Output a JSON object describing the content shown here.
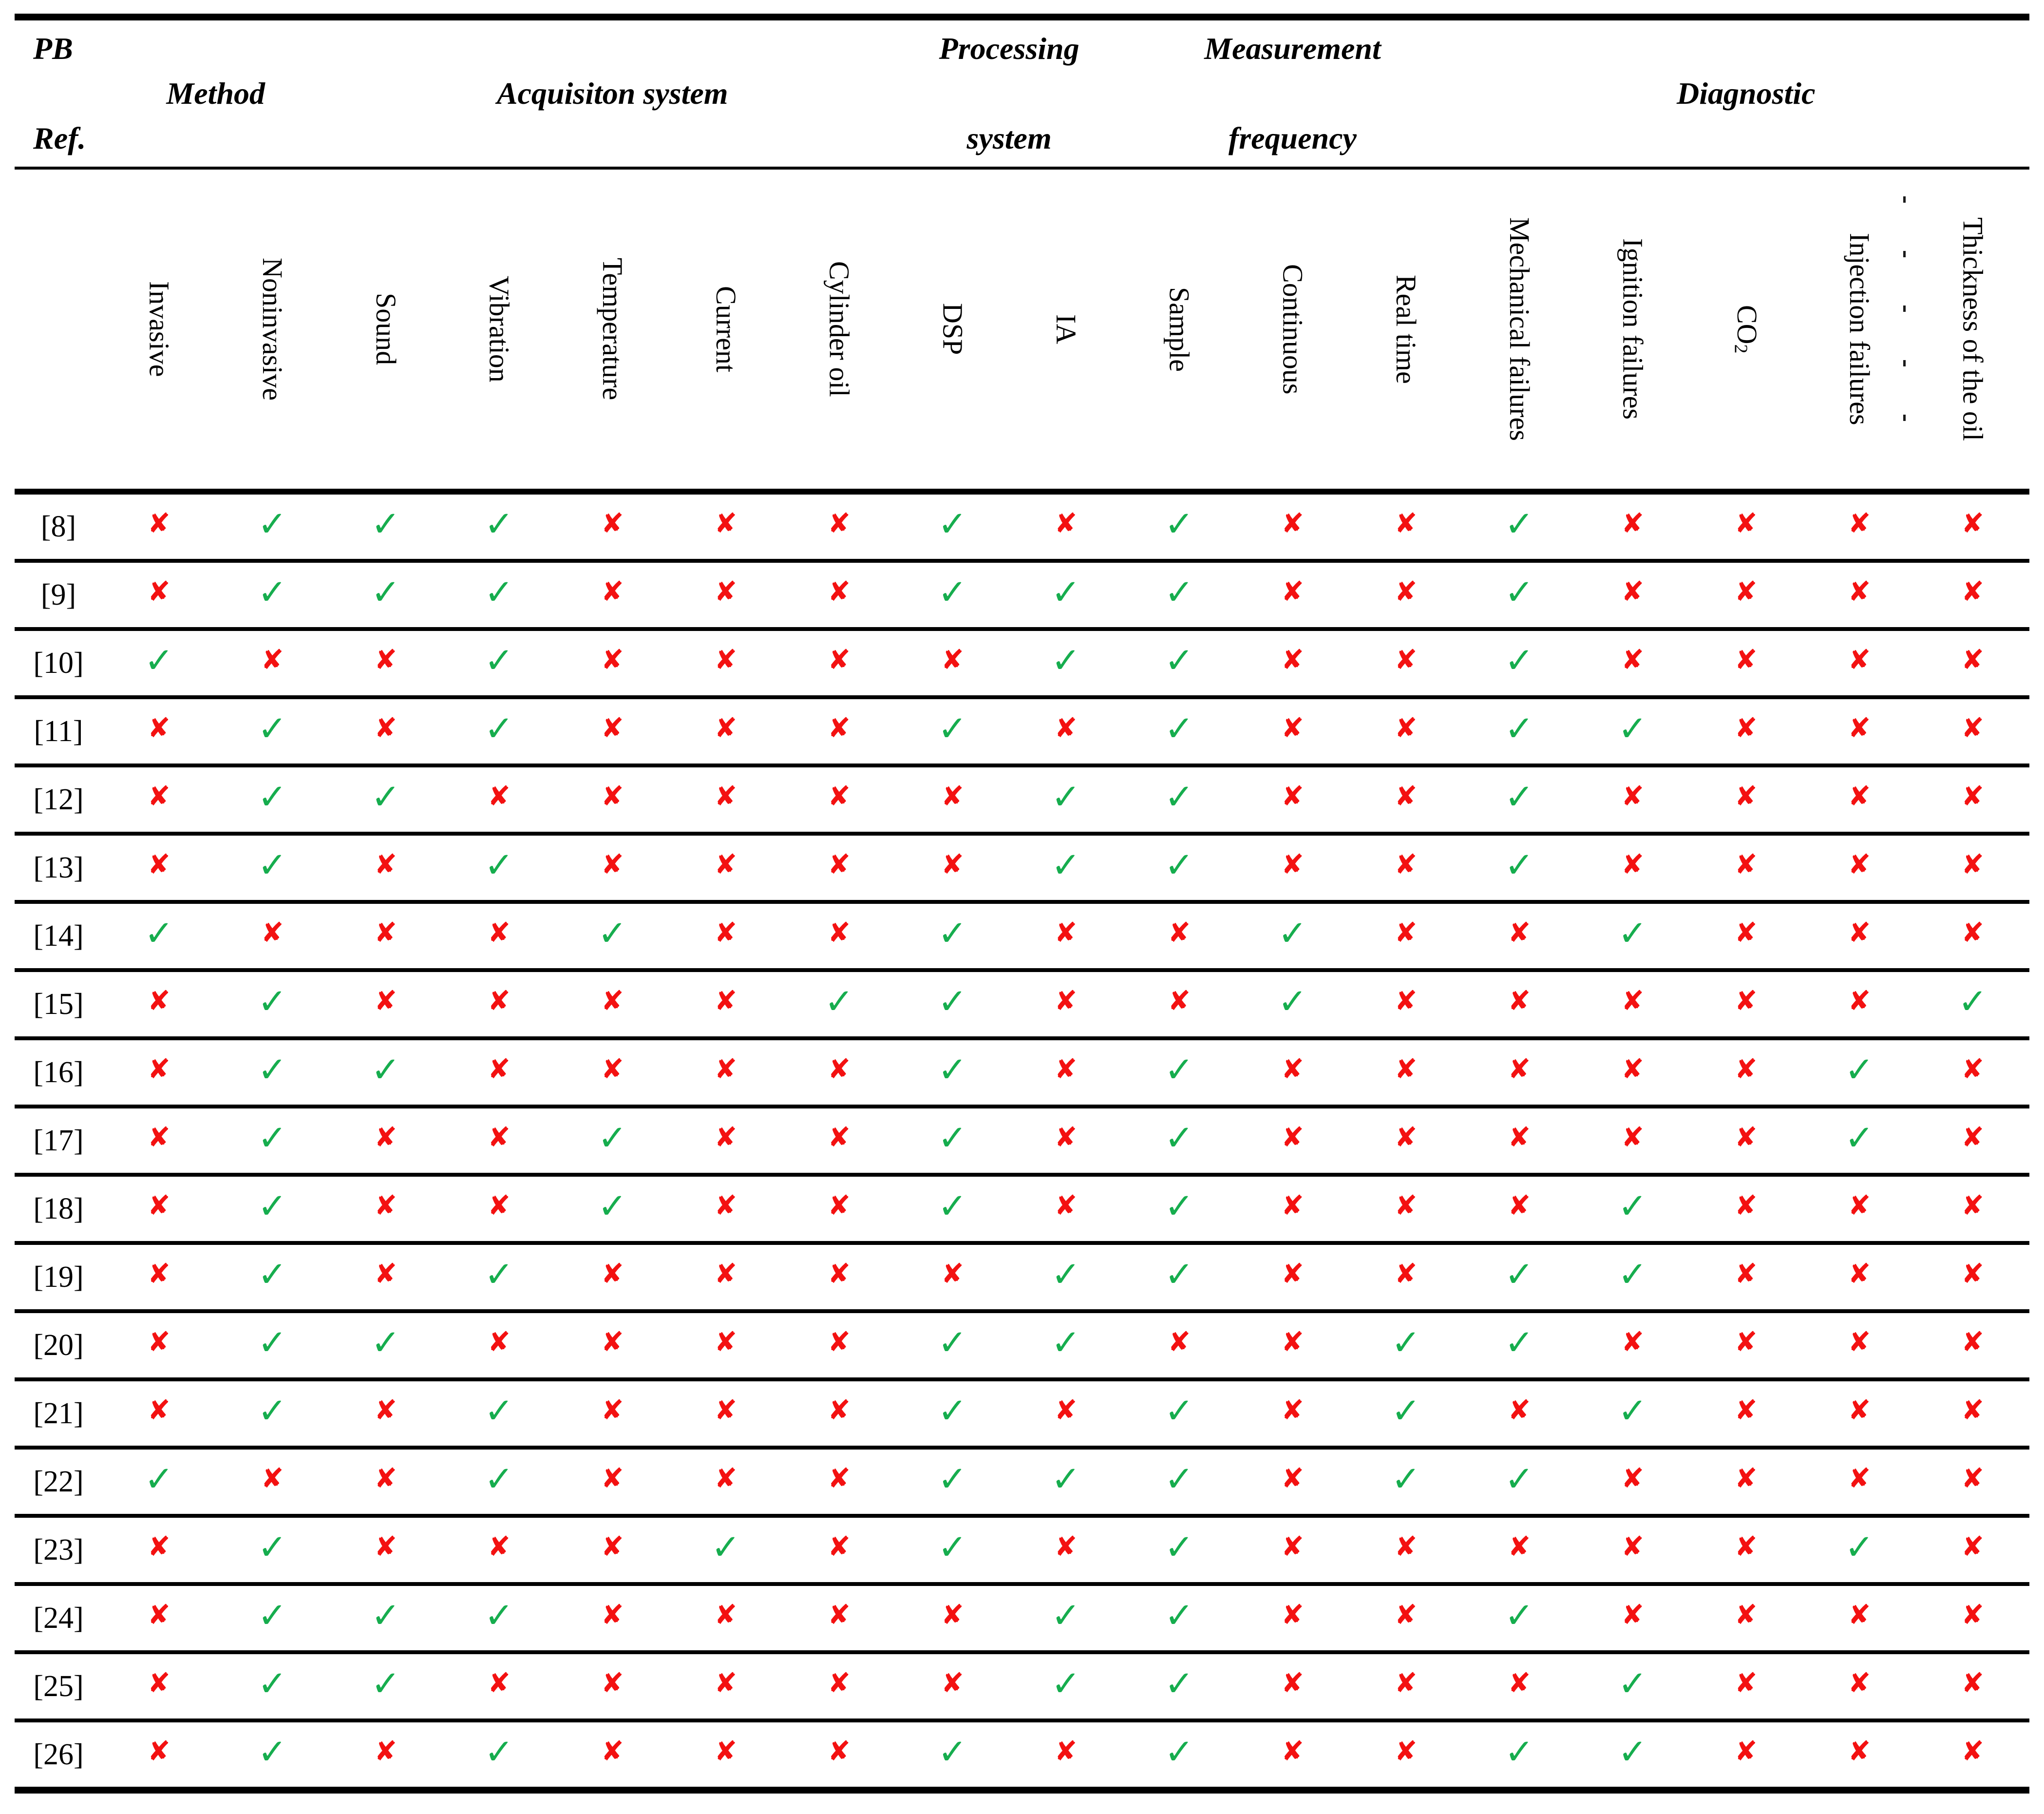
{
  "table": {
    "corner": {
      "line1": "PB",
      "line2": "Ref."
    },
    "groups": [
      {
        "lines": [
          "Method"
        ],
        "span": 2
      },
      {
        "lines": [
          "Acquisiton system"
        ],
        "span": 5
      },
      {
        "lines": [
          "Processing",
          "system"
        ],
        "span": 2
      },
      {
        "lines": [
          "Measurement",
          "frequency"
        ],
        "span": 3
      },
      {
        "lines": [
          "Diagnostic"
        ],
        "span": 5
      }
    ],
    "columns": [
      {
        "label": "Invasive"
      },
      {
        "label": "Noninvasive"
      },
      {
        "label": "Sound"
      },
      {
        "label": "Vibration"
      },
      {
        "label": "Temperature"
      },
      {
        "label": "Current"
      },
      {
        "label": "Cylinder oil"
      },
      {
        "label": "DSP"
      },
      {
        "label": "IA"
      },
      {
        "label": "Sample"
      },
      {
        "label": "Continuous"
      },
      {
        "label": "Real time"
      },
      {
        "label": "Mechanical failures"
      },
      {
        "label": "Ignition failures"
      },
      {
        "label": "CO",
        "subscript": "2"
      },
      {
        "label": "Injection failures"
      },
      {
        "label": "Thickness of the oil"
      }
    ],
    "marks": {
      "check": "✓",
      "cross": "✘"
    },
    "colors": {
      "check": "#16ad4e",
      "cross": "#f31111"
    },
    "rows": [
      {
        "ref": "[8]",
        "values": [
          0,
          1,
          1,
          1,
          0,
          0,
          0,
          1,
          0,
          1,
          0,
          0,
          1,
          0,
          0,
          0,
          0
        ]
      },
      {
        "ref": "[9]",
        "values": [
          0,
          1,
          1,
          1,
          0,
          0,
          0,
          1,
          1,
          1,
          0,
          0,
          1,
          0,
          0,
          0,
          0
        ]
      },
      {
        "ref": "[10]",
        "values": [
          1,
          0,
          0,
          1,
          0,
          0,
          0,
          0,
          1,
          1,
          0,
          0,
          1,
          0,
          0,
          0,
          0
        ]
      },
      {
        "ref": "[11]",
        "values": [
          0,
          1,
          0,
          1,
          0,
          0,
          0,
          1,
          0,
          1,
          0,
          0,
          1,
          1,
          0,
          0,
          0
        ]
      },
      {
        "ref": "[12]",
        "values": [
          0,
          1,
          1,
          0,
          0,
          0,
          0,
          0,
          1,
          1,
          0,
          0,
          1,
          0,
          0,
          0,
          0
        ]
      },
      {
        "ref": "[13]",
        "values": [
          0,
          1,
          0,
          1,
          0,
          0,
          0,
          0,
          1,
          1,
          0,
          0,
          1,
          0,
          0,
          0,
          0
        ]
      },
      {
        "ref": "[14]",
        "values": [
          1,
          0,
          0,
          0,
          1,
          0,
          0,
          1,
          0,
          0,
          1,
          0,
          0,
          1,
          0,
          0,
          0
        ]
      },
      {
        "ref": "[15]",
        "values": [
          0,
          1,
          0,
          0,
          0,
          0,
          1,
          1,
          0,
          0,
          1,
          0,
          0,
          0,
          0,
          0,
          1
        ]
      },
      {
        "ref": "[16]",
        "values": [
          0,
          1,
          1,
          0,
          0,
          0,
          0,
          1,
          0,
          1,
          0,
          0,
          0,
          0,
          0,
          1,
          0
        ]
      },
      {
        "ref": "[17]",
        "values": [
          0,
          1,
          0,
          0,
          1,
          0,
          0,
          1,
          0,
          1,
          0,
          0,
          0,
          0,
          0,
          1,
          0
        ]
      },
      {
        "ref": "[18]",
        "values": [
          0,
          1,
          0,
          0,
          1,
          0,
          0,
          1,
          0,
          1,
          0,
          0,
          0,
          1,
          0,
          0,
          0
        ]
      },
      {
        "ref": "[19]",
        "values": [
          0,
          1,
          0,
          1,
          0,
          0,
          0,
          0,
          1,
          1,
          0,
          0,
          1,
          1,
          0,
          0,
          0
        ]
      },
      {
        "ref": "[20]",
        "values": [
          0,
          1,
          1,
          0,
          0,
          0,
          0,
          1,
          1,
          0,
          0,
          1,
          1,
          0,
          0,
          0,
          0
        ]
      },
      {
        "ref": "[21]",
        "values": [
          0,
          1,
          0,
          1,
          0,
          0,
          0,
          1,
          0,
          1,
          0,
          1,
          0,
          1,
          0,
          0,
          0
        ]
      },
      {
        "ref": "[22]",
        "values": [
          1,
          0,
          0,
          1,
          0,
          0,
          0,
          1,
          1,
          1,
          0,
          1,
          1,
          0,
          0,
          0,
          0
        ]
      },
      {
        "ref": "[23]",
        "values": [
          0,
          1,
          0,
          0,
          0,
          1,
          0,
          1,
          0,
          1,
          0,
          0,
          0,
          0,
          0,
          1,
          0
        ]
      },
      {
        "ref": "[24]",
        "values": [
          0,
          1,
          1,
          1,
          0,
          0,
          0,
          0,
          1,
          1,
          0,
          0,
          1,
          0,
          0,
          0,
          0
        ]
      },
      {
        "ref": "[25]",
        "values": [
          0,
          1,
          1,
          0,
          0,
          0,
          0,
          0,
          1,
          1,
          0,
          0,
          0,
          1,
          0,
          0,
          0
        ]
      },
      {
        "ref": "[26]",
        "values": [
          0,
          1,
          0,
          1,
          0,
          0,
          0,
          1,
          0,
          1,
          0,
          0,
          1,
          1,
          0,
          0,
          0
        ]
      }
    ]
  }
}
